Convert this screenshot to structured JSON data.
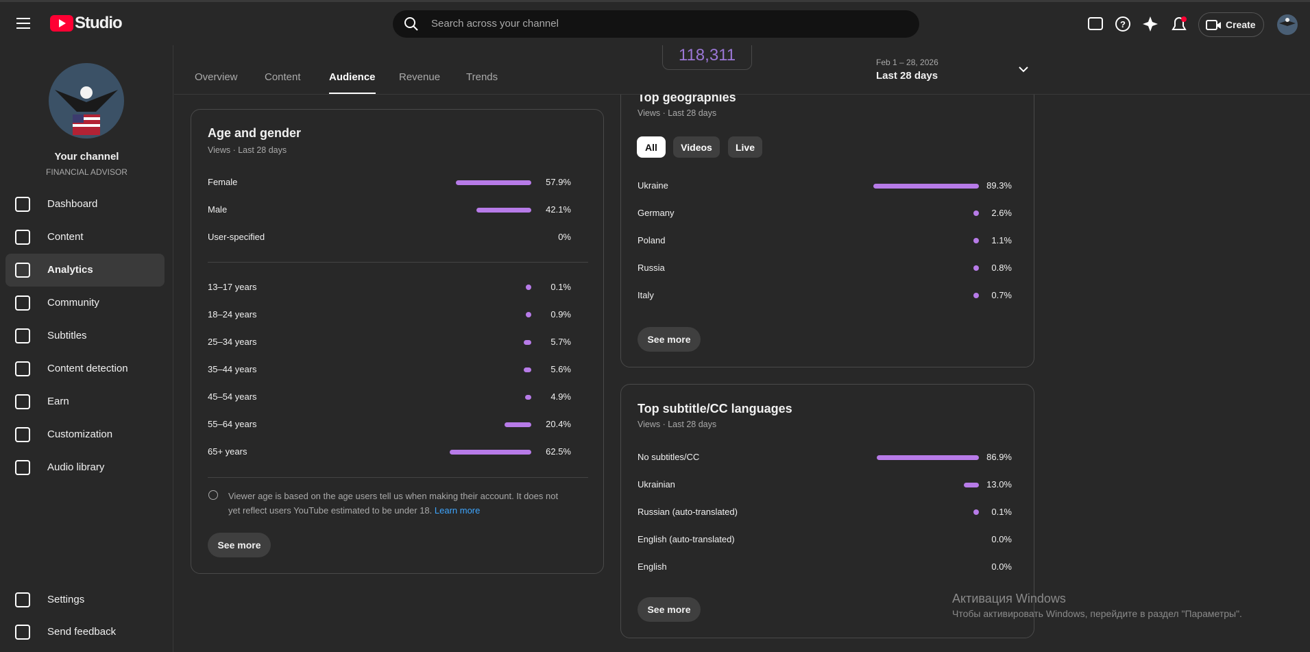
{
  "header": {
    "logo": "Studio",
    "search_placeholder": "Search across your channel",
    "create": "Create"
  },
  "sidebar": {
    "channel_title": "Your channel",
    "channel_subtitle": "FINANCIAL ADVISOR",
    "nav": [
      "Dashboard",
      "Content",
      "Analytics",
      "Community",
      "Subtitles",
      "Content detection",
      "Earn",
      "Customization",
      "Audio library"
    ],
    "footer": [
      "Settings",
      "Send feedback"
    ]
  },
  "tabs": [
    "Overview",
    "Content",
    "Audience",
    "Revenue",
    "Trends"
  ],
  "partial_metric": "118,311",
  "date_range": {
    "range": "Feb 1 – 28, 2026",
    "label": "Last 28 days"
  },
  "cards": {
    "age_gender": {
      "title": "Age and gender",
      "subtitle": "Views · Last 28 days",
      "gender": {
        "categories": [
          "Female",
          "Male",
          "User-specified"
        ],
        "values": [
          57.9,
          42.1,
          0
        ],
        "value_labels": [
          "57.9%",
          "42.1%",
          "0%"
        ]
      },
      "age": {
        "categories": [
          "13–17 years",
          "18–24 years",
          "25–34 years",
          "35–44 years",
          "45–54 years",
          "55–64 years",
          "65+ years"
        ],
        "values": [
          0.1,
          0.9,
          5.7,
          5.6,
          4.9,
          20.4,
          62.5
        ],
        "value_labels": [
          "0.1%",
          "0.9%",
          "5.7%",
          "5.6%",
          "4.9%",
          "20.4%",
          "62.5%"
        ]
      },
      "note": "Viewer age is based on the age users tell us when making their account. It does not yet reflect users YouTube estimated to be under 18.",
      "note_link": "Learn more",
      "button": "See more"
    },
    "geographies": {
      "title": "Top geographies",
      "subtitle": "Views · Last 28 days",
      "chips": [
        "All",
        "Videos",
        "Live"
      ],
      "categories": [
        "Ukraine",
        "Germany",
        "Poland",
        "Russia",
        "Italy"
      ],
      "values": [
        89.3,
        2.6,
        1.1,
        0.8,
        0.7
      ],
      "value_labels": [
        "89.3%",
        "2.6%",
        "1.1%",
        "0.8%",
        "0.7%"
      ],
      "button": "See more"
    },
    "languages": {
      "title": "Top subtitle/CC languages",
      "subtitle": "Views · Last 28 days",
      "categories": [
        "No subtitles/CC",
        "Ukrainian",
        "Russian (auto-translated)",
        "English (auto-translated)",
        "English"
      ],
      "values": [
        86.9,
        13.0,
        0.1,
        0.0,
        0.0
      ],
      "value_labels": [
        "86.9%",
        "13.0%",
        "0.1%",
        "0.0%",
        "0.0%"
      ],
      "button": "See more"
    }
  },
  "watermark": {
    "title": "Активация Windows",
    "text": "Чтобы активировать Windows, перейдите в раздел \"Параметры\"."
  }
}
